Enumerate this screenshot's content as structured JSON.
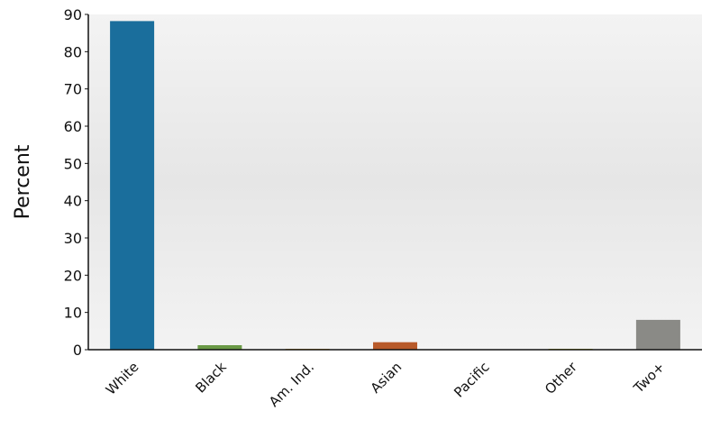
{
  "chart_data": {
    "type": "bar",
    "categories": [
      "White",
      "Black",
      "Am. Ind.",
      "Asian",
      "Pacific",
      "Other",
      "Two+"
    ],
    "values": [
      88.2,
      1.2,
      0.2,
      2.0,
      0.0,
      0.2,
      8.0
    ],
    "colors": [
      "#1a6e9c",
      "#6a9a46",
      "#d9a441",
      "#b85a2a",
      "#8a8a8a",
      "#bcbc3a",
      "#8a8a86"
    ],
    "ylabel": "Percent",
    "ylim": [
      0,
      90
    ],
    "yticks": [
      0,
      10,
      20,
      30,
      40,
      50,
      60,
      70,
      80,
      90
    ],
    "grid": false,
    "legend": "none"
  }
}
